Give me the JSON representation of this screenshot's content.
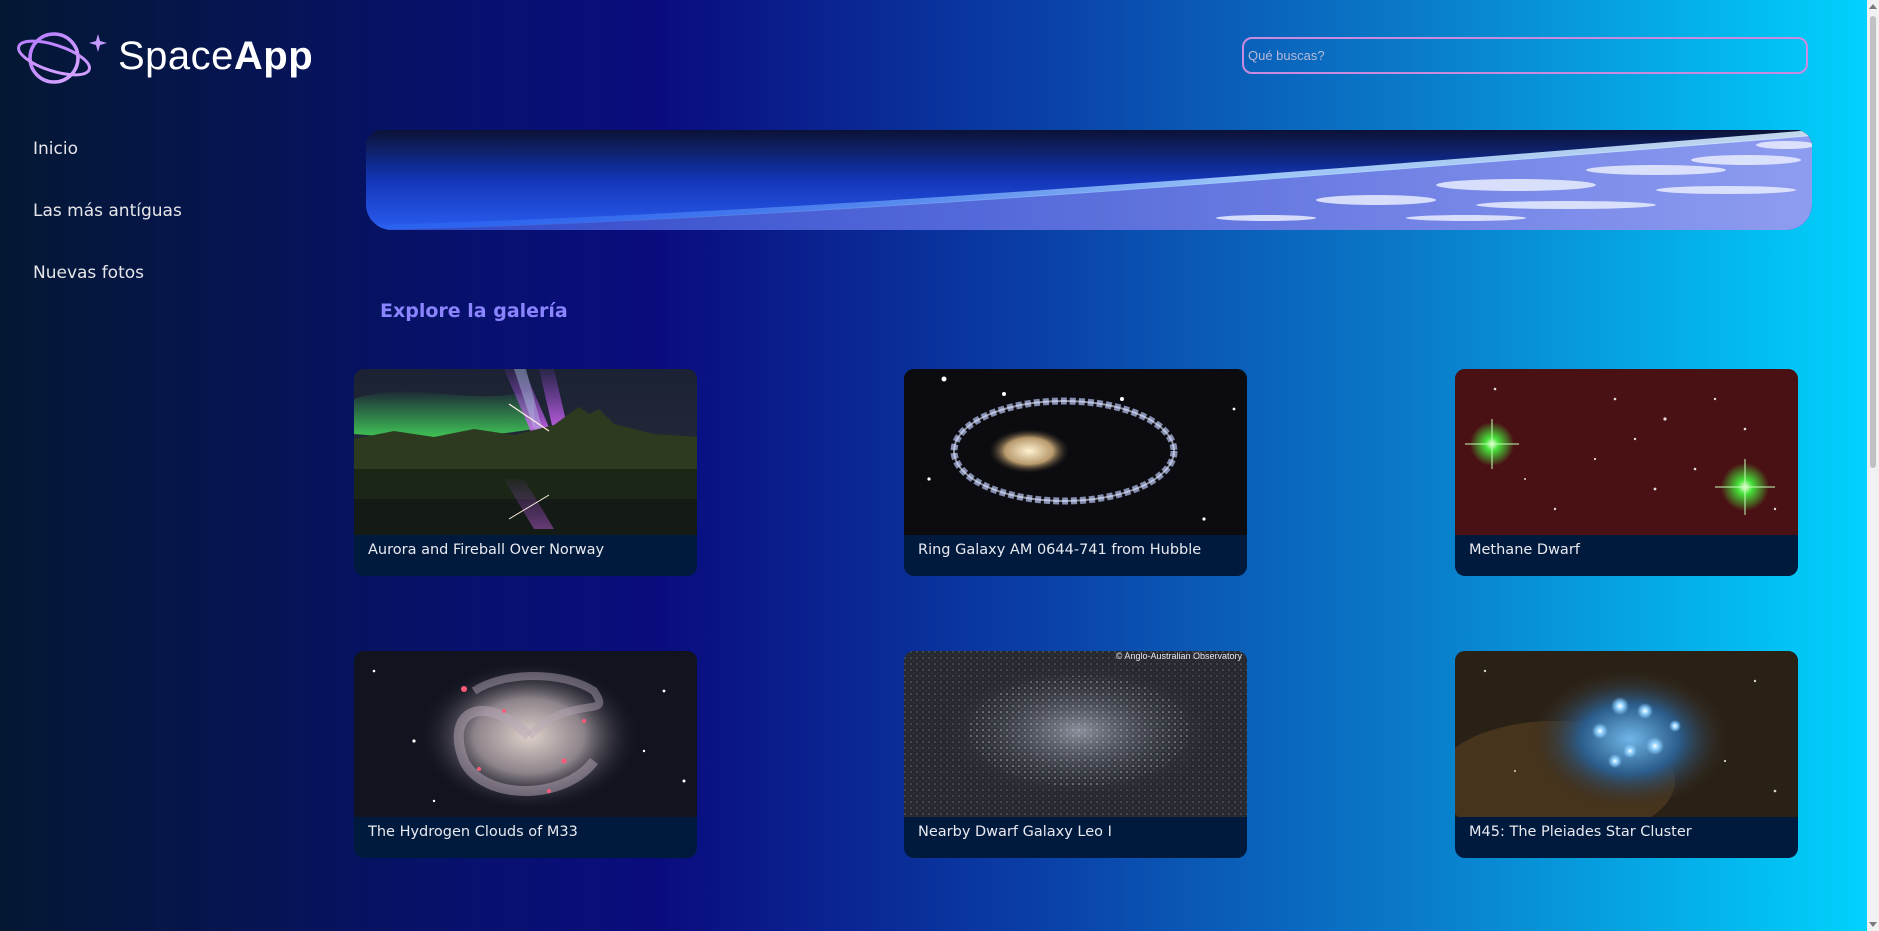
{
  "brand": {
    "name_light": "Space",
    "name_bold": "App"
  },
  "search": {
    "placeholder": "Qué buscas?",
    "value": ""
  },
  "sidebar": {
    "items": [
      {
        "label": "Inicio"
      },
      {
        "label": "Las más antíguas"
      },
      {
        "label": "Nuevas fotos"
      }
    ]
  },
  "gallery": {
    "title": "Explore la galería",
    "cards": [
      {
        "caption": "Aurora and Fireball Over Norway"
      },
      {
        "caption": "Ring Galaxy AM 0644-741 from Hubble"
      },
      {
        "caption": "Methane Dwarf"
      },
      {
        "caption": "The Hydrogen Clouds of M33"
      },
      {
        "caption": "Nearby Dwarf Galaxy Leo I"
      },
      {
        "caption": "M45: The Pleiades Star Cluster"
      }
    ],
    "watermark_leo": "© Anglo-Australian Observatory"
  },
  "colors": {
    "accent_title": "#8a84ff",
    "search_border": "#c98bdf",
    "card_bg": "#001a3d"
  }
}
